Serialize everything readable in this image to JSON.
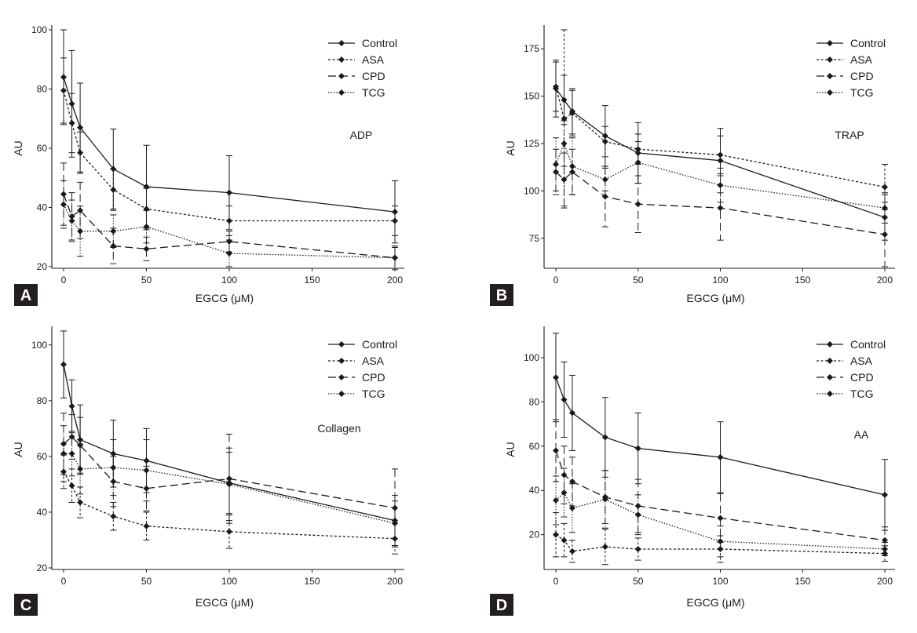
{
  "chart_data": [
    {
      "type": "line",
      "panel": "A",
      "agonist": "ADP",
      "xlabel": "EGCG (μM)",
      "ylabel": "AU",
      "xlim": [
        0,
        200
      ],
      "ylim": [
        20,
        100
      ],
      "xticks": [
        0,
        50,
        100,
        150,
        200
      ],
      "yticks": [
        20,
        40,
        60,
        80,
        100
      ],
      "legend_position": "top-right",
      "x": [
        0,
        5,
        10,
        30,
        50,
        100,
        200
      ],
      "series": [
        {
          "name": "Control",
          "dash": "solid",
          "values": [
            84,
            75,
            67,
            53,
            47,
            45,
            38.5
          ],
          "errors": [
            16,
            18,
            15,
            13.5,
            14,
            12.5,
            10.5
          ]
        },
        {
          "name": "ASA",
          "dash": "dashed-fine",
          "values": [
            79.5,
            68.5,
            58.5,
            46,
            39.5,
            35.5,
            35.5
          ],
          "errors": [
            11,
            10,
            7,
            7,
            7,
            5,
            5
          ]
        },
        {
          "name": "CPD",
          "dash": "dashed",
          "values": [
            44.5,
            37,
            39,
            27,
            26,
            28.5,
            23
          ],
          "errors": [
            10.5,
            8,
            9.5,
            6,
            4,
            3.5,
            3.5
          ]
        },
        {
          "name": "TCG",
          "dash": "dotted",
          "values": [
            41,
            35.5,
            32,
            32,
            33.5,
            24.5,
            23
          ],
          "errors": [
            8,
            7,
            8.5,
            5.5,
            5.5,
            4.5,
            4
          ]
        }
      ]
    },
    {
      "type": "line",
      "panel": "B",
      "agonist": "TRAP",
      "xlabel": "EGCG (μM)",
      "ylabel": "AU",
      "xlim": [
        0,
        200
      ],
      "ylim": [
        60,
        185
      ],
      "xticks": [
        0,
        50,
        100,
        150,
        200
      ],
      "yticks": [
        75,
        100,
        125,
        150,
        175
      ],
      "legend_position": "top-right",
      "x": [
        0,
        5,
        10,
        30,
        50,
        100,
        200
      ],
      "series": [
        {
          "name": "Control",
          "dash": "solid",
          "values": [
            154,
            148,
            142,
            129,
            120,
            116,
            86
          ],
          "errors": [
            15,
            13,
            12,
            16,
            16,
            17,
            12
          ]
        },
        {
          "name": "ASA",
          "dash": "dashed-fine",
          "values": [
            155,
            138,
            141,
            126,
            122,
            119,
            102
          ],
          "errors": [
            13,
            47,
            12,
            8,
            8,
            10,
            12
          ]
        },
        {
          "name": "CPD",
          "dash": "dashed",
          "values": [
            110,
            106,
            110,
            97,
            93,
            91,
            77
          ],
          "errors": [
            12,
            14,
            12,
            16,
            15,
            17,
            17
          ]
        },
        {
          "name": "TCG",
          "dash": "dotted",
          "values": [
            114,
            125,
            113,
            106,
            115,
            103,
            91
          ],
          "errors": [
            14,
            12,
            15,
            6,
            11,
            9,
            8
          ]
        }
      ]
    },
    {
      "type": "line",
      "panel": "C",
      "agonist": "Collagen",
      "xlabel": "EGCG (μM)",
      "ylabel": "AU",
      "xlim": [
        0,
        200
      ],
      "ylim": [
        20,
        105
      ],
      "xticks": [
        0,
        50,
        100,
        150,
        200
      ],
      "yticks": [
        20,
        40,
        60,
        80,
        100
      ],
      "legend_position": "top-right",
      "x": [
        0,
        5,
        10,
        30,
        50,
        100,
        200
      ],
      "series": [
        {
          "name": "Control",
          "dash": "solid",
          "values": [
            93,
            78,
            66,
            61,
            58.5,
            50.5,
            37
          ],
          "errors": [
            12,
            9.5,
            12.5,
            12,
            11.5,
            11,
            9
          ]
        },
        {
          "name": "ASA",
          "dash": "dashed-fine",
          "values": [
            54.5,
            49.5,
            43.5,
            38.5,
            35,
            33,
            30.5
          ],
          "errors": [
            6,
            6,
            5.5,
            5,
            5,
            6,
            5.5
          ]
        },
        {
          "name": "CPD",
          "dash": "dashed",
          "values": [
            64.5,
            67,
            64,
            51,
            48.5,
            52,
            41.5
          ],
          "errors": [
            11,
            8,
            10,
            9,
            8,
            16,
            14
          ]
        },
        {
          "name": "TCG",
          "dash": "dotted",
          "values": [
            61,
            61,
            55.5,
            56,
            55,
            50,
            36
          ],
          "errors": [
            10,
            8,
            9,
            10,
            11,
            13,
            8
          ]
        }
      ]
    },
    {
      "type": "line",
      "panel": "D",
      "agonist": "AA",
      "xlabel": "EGCG (μM)",
      "ylabel": "AU",
      "xlim": [
        0,
        200
      ],
      "ylim": [
        5,
        112
      ],
      "xticks": [
        0,
        50,
        100,
        150,
        200
      ],
      "yticks": [
        20,
        40,
        60,
        80,
        100
      ],
      "legend_position": "top-right",
      "x": [
        0,
        5,
        10,
        30,
        50,
        100,
        200
      ],
      "series": [
        {
          "name": "Control",
          "dash": "solid",
          "values": [
            91,
            81,
            75,
            64,
            59,
            55,
            38
          ],
          "errors": [
            20,
            17,
            17,
            18,
            16,
            16,
            16
          ]
        },
        {
          "name": "ASA",
          "dash": "dashed-fine",
          "values": [
            20,
            17.5,
            12.5,
            14.5,
            13.5,
            13.5,
            11.5
          ],
          "errors": [
            10,
            7.5,
            5,
            8,
            5,
            6,
            3.5
          ]
        },
        {
          "name": "CPD",
          "dash": "dashed",
          "values": [
            58,
            47,
            44,
            37,
            33,
            27.5,
            17.5
          ],
          "errors": [
            14,
            13,
            11,
            12,
            12,
            11,
            6
          ]
        },
        {
          "name": "TCG",
          "dash": "dotted",
          "values": [
            35.5,
            39,
            32,
            36,
            29,
            17,
            13.5
          ],
          "errors": [
            11,
            11,
            11,
            13,
            9,
            7,
            3
          ]
        }
      ]
    }
  ]
}
